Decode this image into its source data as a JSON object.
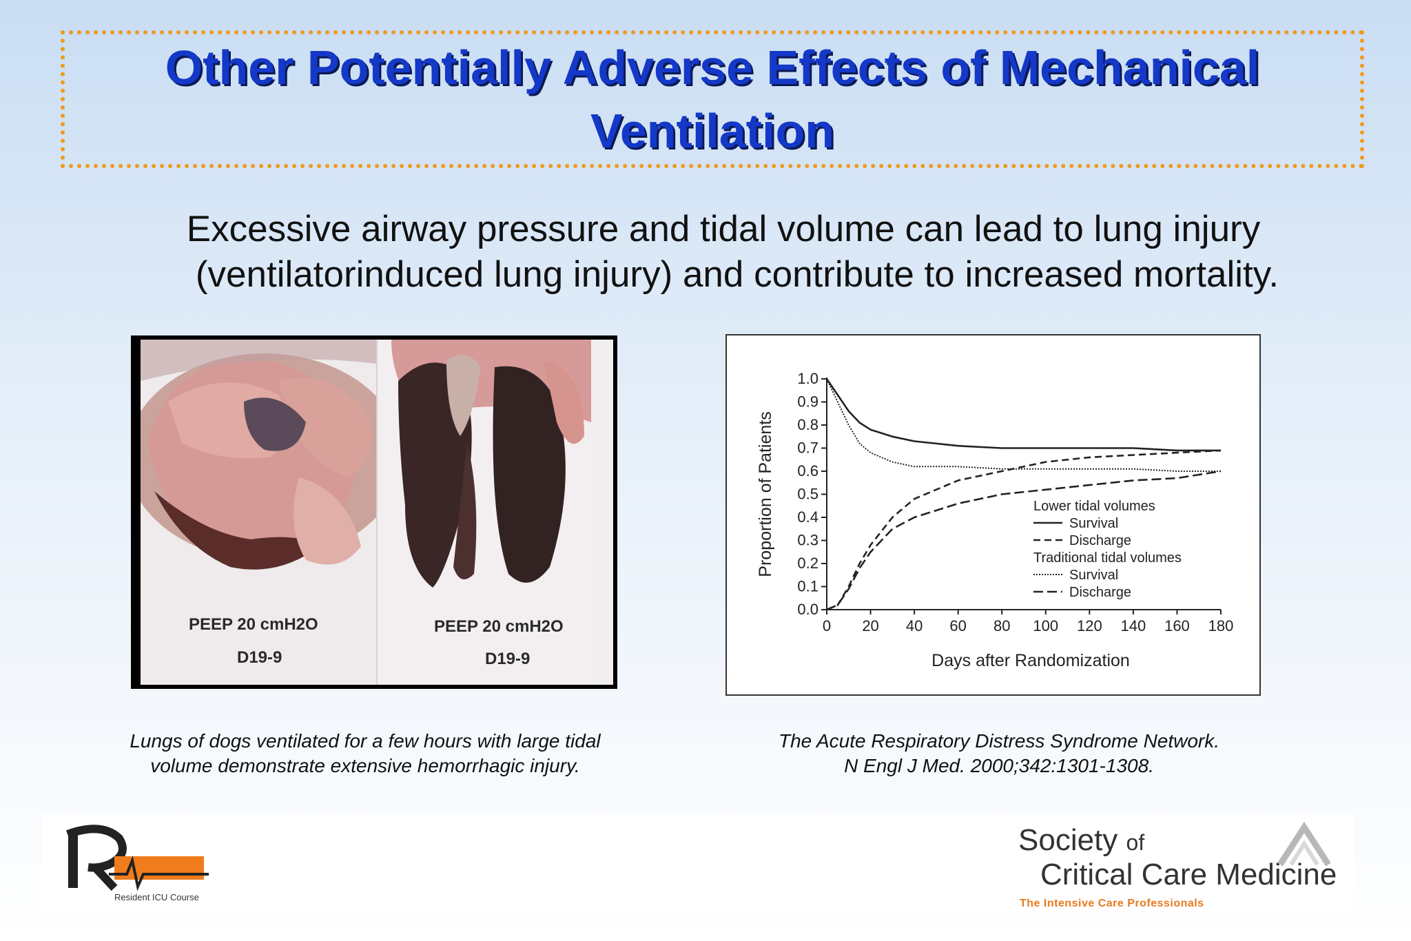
{
  "title": {
    "line1": "Other Potentially Adverse Effects of Mechanical",
    "line2": "Ventilation"
  },
  "body": {
    "line1": "Excessive airway pressure and tidal volume can lead to lung injury",
    "line2": "(ventilatorinduced lung injury) and contribute to increased mortality."
  },
  "photo": {
    "left_label_peep": "PEEP  20 cmH2O",
    "left_label_id": "D19-9",
    "right_label_peep": "PEEP  20 cmH2O",
    "right_label_id": "D19-9"
  },
  "captions": {
    "left_line1": "Lungs of dogs ventilated for a few hours with large tidal",
    "left_line2": "volume demonstrate extensive hemorrhagic injury.",
    "right_line1": "The Acute Respiratory Distress Syndrome Network.",
    "right_line2": "N Engl J Med. 2000;342:1301-1308."
  },
  "chart_data": {
    "type": "line",
    "title": "",
    "xlabel": "Days after Randomization",
    "ylabel": "Proportion of Patients",
    "xlim": [
      0,
      180
    ],
    "ylim": [
      0,
      1.0
    ],
    "xticks": [
      "0",
      "20",
      "40",
      "60",
      "80",
      "100",
      "120",
      "140",
      "160",
      "180"
    ],
    "yticks": [
      "0.0",
      "0.1",
      "0.2",
      "0.3",
      "0.4",
      "0.5",
      "0.6",
      "0.7",
      "0.8",
      "0.9",
      "1.0"
    ],
    "grid": false,
    "legend": {
      "placement": "bottom-right",
      "groups": [
        {
          "heading": "Lower tidal volumes",
          "entries": [
            "Survival",
            "Discharge"
          ]
        },
        {
          "heading": "Traditional tidal volumes",
          "entries": [
            "Survival",
            "Discharge"
          ]
        }
      ]
    },
    "series": [
      {
        "group": "Lower tidal volumes",
        "name": "Survival",
        "style": "solid",
        "x": [
          0,
          5,
          10,
          15,
          20,
          30,
          40,
          60,
          80,
          100,
          120,
          140,
          160,
          180
        ],
        "y": [
          1.0,
          0.93,
          0.86,
          0.81,
          0.78,
          0.75,
          0.73,
          0.71,
          0.7,
          0.7,
          0.7,
          0.7,
          0.69,
          0.69
        ]
      },
      {
        "group": "Lower tidal volumes",
        "name": "Discharge",
        "style": "dashed",
        "x": [
          0,
          5,
          10,
          15,
          20,
          30,
          40,
          60,
          80,
          100,
          120,
          140,
          160,
          180
        ],
        "y": [
          0.0,
          0.02,
          0.1,
          0.2,
          0.28,
          0.4,
          0.48,
          0.56,
          0.6,
          0.64,
          0.66,
          0.67,
          0.68,
          0.69
        ]
      },
      {
        "group": "Traditional tidal volumes",
        "name": "Survival",
        "style": "dotted",
        "x": [
          0,
          5,
          10,
          15,
          20,
          30,
          40,
          60,
          80,
          100,
          120,
          140,
          160,
          180
        ],
        "y": [
          1.0,
          0.9,
          0.8,
          0.72,
          0.68,
          0.64,
          0.62,
          0.62,
          0.61,
          0.61,
          0.61,
          0.61,
          0.6,
          0.6
        ]
      },
      {
        "group": "Traditional tidal volumes",
        "name": "Discharge",
        "style": "longdash",
        "x": [
          0,
          5,
          10,
          15,
          20,
          30,
          40,
          60,
          80,
          100,
          120,
          140,
          160,
          180
        ],
        "y": [
          0.0,
          0.02,
          0.09,
          0.18,
          0.25,
          0.35,
          0.4,
          0.46,
          0.5,
          0.52,
          0.54,
          0.56,
          0.57,
          0.6
        ]
      }
    ]
  },
  "logos": {
    "ricu_mark": "R ICU",
    "ricu_tagline": "Resident ICU Course",
    "sccm_society": "Society",
    "sccm_of": "of",
    "sccm_name": "Critical Care Medicine",
    "sccm_tagline": "The Intensive Care Professionals"
  }
}
